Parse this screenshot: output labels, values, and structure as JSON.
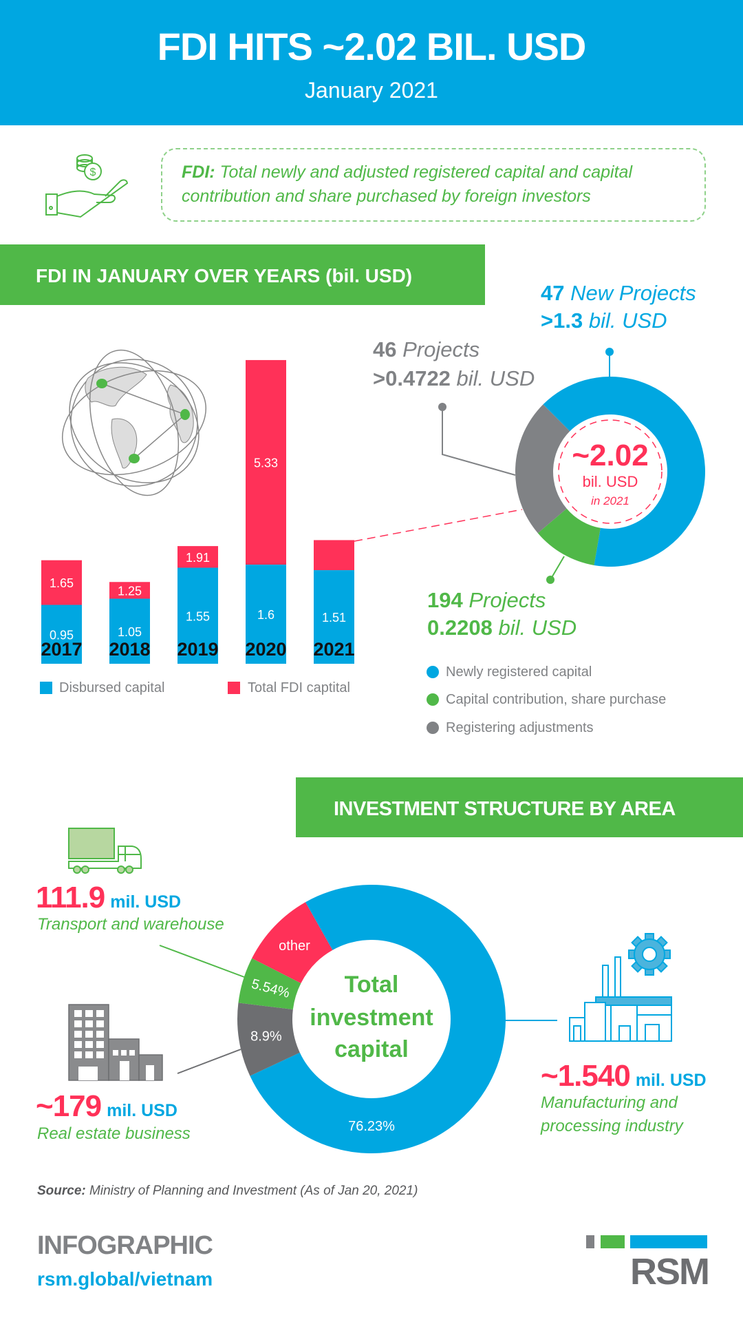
{
  "header": {
    "title": "FDI HITS ~2.02 BIL. USD",
    "subtitle": "January 2021"
  },
  "definition": {
    "term": "FDI:",
    "line1": " Total newly and adjusted registered capital and capital",
    "line2": "contribution and share purchased by foreign investors"
  },
  "section1": {
    "title": "FDI IN JANUARY OVER YEARS (bil. USD)"
  },
  "donut_callouts": {
    "new": {
      "count": "47",
      "label": "New Projects",
      "amount": ">1.3",
      "unit": "bil. USD"
    },
    "adjust": {
      "count": "46",
      "label": "Projects",
      "amount": ">0.4722",
      "unit": "bil. USD"
    },
    "contrib": {
      "count": "194",
      "label": "Projects",
      "amount": "0.2208",
      "unit": "bil. USD"
    },
    "center": {
      "value": "~2.02",
      "unit": "bil. USD",
      "note": "in 2021"
    }
  },
  "section2": {
    "title": "INVESTMENT STRUCTURE BY AREA",
    "center_lines": [
      "Total",
      "investment",
      "capital"
    ]
  },
  "area_callouts": {
    "transport": {
      "amount": "111.9",
      "unit": "mil. USD",
      "lines": [
        "Transport and warehouse"
      ]
    },
    "real_estate": {
      "amount": "~179",
      "unit": "mil. USD",
      "lines": [
        "Real estate business"
      ]
    },
    "manufacturing": {
      "amount": "~1.540",
      "unit": "mil. USD",
      "lines": [
        "Manufacturing and",
        "processing industry"
      ]
    }
  },
  "footer": {
    "source_label": "Source:",
    "source_text": " Ministry of Planning and Investment (As of Jan 20, 2021)",
    "infographic": "INFOGRAPHIC",
    "url": "rsm.global/vietnam",
    "logo": "RSM"
  },
  "colors": {
    "blue": "#00a7e1",
    "green": "#50b848",
    "pink": "#ff3158",
    "gray": "#808285"
  },
  "icons": [
    "hand-coins-icon",
    "globe-icon",
    "truck-icon",
    "buildings-icon",
    "factory-gear-icon"
  ],
  "chart_data": [
    {
      "type": "bar",
      "stacked": true,
      "categories": [
        "2017",
        "2018",
        "2019",
        "2020",
        "2021"
      ],
      "series": [
        {
          "name": "Disbursed capital",
          "values": [
            0.95,
            1.05,
            1.55,
            1.6,
            1.51
          ],
          "color": "#00a7e1"
        },
        {
          "name": "Total FDI captital",
          "values": [
            1.65,
            1.25,
            1.91,
            5.33,
            2.02
          ],
          "labeled": [
            true,
            true,
            true,
            true,
            false
          ],
          "color": "#ff3158"
        }
      ],
      "legend": "bottom",
      "grid": false
    },
    {
      "type": "pie",
      "donut": true,
      "labels": [
        "Newly registered capital",
        "Capital contribution, share purchase",
        "Registering adjustments"
      ],
      "values": [
        1.3,
        0.2208,
        0.4722
      ],
      "colors": [
        "#00a7e1",
        "#50b848",
        "#808285"
      ],
      "legend": "bottom"
    },
    {
      "type": "pie",
      "donut": true,
      "slice_labels": [
        "76.23%",
        "8.9%",
        "5.54%",
        "other"
      ],
      "values": [
        76.23,
        8.9,
        5.54,
        null
      ],
      "colors": [
        "#00a7e1",
        "#6d6e71",
        "#50b848",
        "#ff3158"
      ]
    }
  ]
}
